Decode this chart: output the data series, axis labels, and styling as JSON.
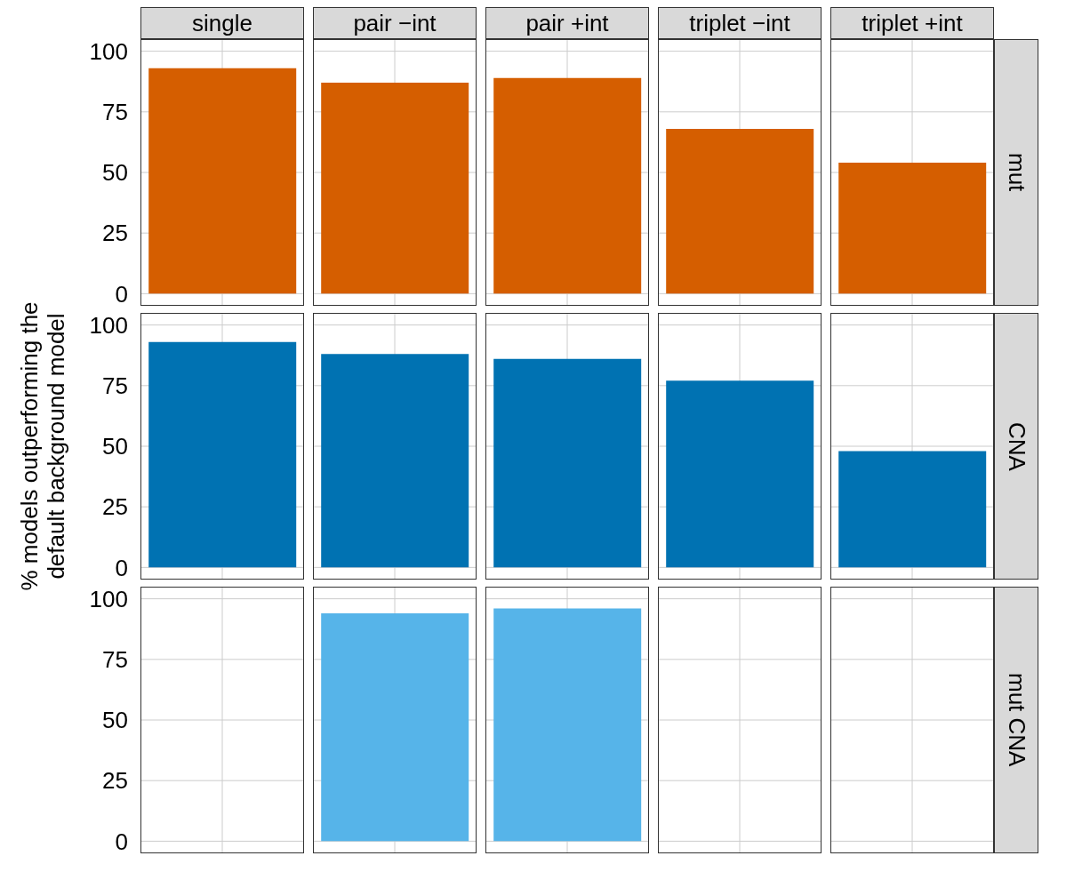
{
  "chart_data": [
    {
      "type": "bar",
      "title": "mut",
      "categories": [
        "single",
        "pair −int",
        "pair +int",
        "triplet −int",
        "triplet +int"
      ],
      "values": [
        93,
        87,
        89,
        68,
        54
      ],
      "color": "#d55e00",
      "ylim": [
        -5,
        105
      ],
      "yticks": [
        0,
        25,
        50,
        75,
        100
      ],
      "grid": true
    },
    {
      "type": "bar",
      "title": "CNA",
      "ylabel": "% models outperforming the default background model",
      "categories": [
        null,
        null,
        null,
        null,
        null
      ],
      "values": [
        93,
        88,
        86,
        77,
        48
      ],
      "color": "#0072b2",
      "ylim": [
        -5,
        105
      ],
      "yticks": [
        0,
        25,
        50,
        75,
        100
      ],
      "grid": true,
      "tick_labels": "y"
    },
    {
      "type": "bar",
      "title": "mut CNA",
      "categories": [
        null,
        null,
        null,
        null,
        null
      ],
      "values": [
        null,
        94,
        96,
        null,
        null
      ],
      "color": "#56b4e9",
      "ylim": [
        -5,
        105
      ],
      "yticks": [
        0,
        25,
        50,
        75,
        100
      ],
      "grid": true,
      "tick_labels": "y"
    }
  ]
}
